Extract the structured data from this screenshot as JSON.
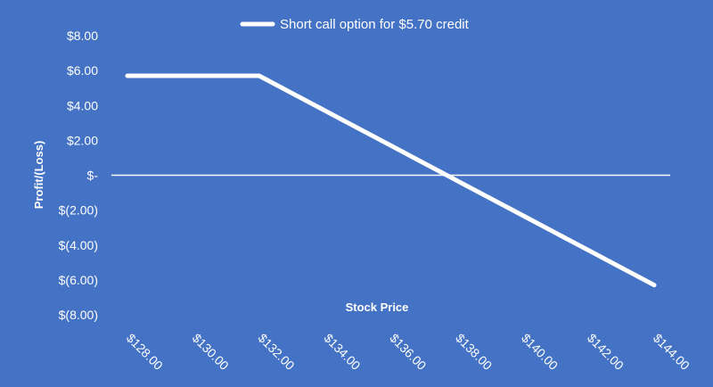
{
  "chart_data": {
    "type": "line",
    "title": "",
    "xlabel": "Stock Price",
    "ylabel": "Profit/(Loss)",
    "legend": "top-center",
    "ylim": [
      -8,
      8
    ],
    "x_tick_labels": [
      "$128.00",
      "$130.00",
      "$132.00",
      "$134.00",
      "$136.00",
      "$138.00",
      "$140.00",
      "$142.00",
      "$144.00"
    ],
    "y_tick_labels": [
      "$8.00",
      "$6.00",
      "$4.00",
      "$2.00",
      "$-",
      "$(2.00)",
      "$(4.00)",
      "$(6.00)",
      "$(8.00)"
    ],
    "series": [
      {
        "name": "Short call option for $5.70 credit",
        "color": "#FFFFFF",
        "x": [
          128,
          129,
          130,
          131,
          132,
          133,
          134,
          135,
          136,
          137,
          138,
          139,
          140,
          141,
          142,
          143,
          144
        ],
        "values": [
          5.7,
          5.7,
          5.7,
          5.7,
          5.7,
          4.7,
          3.7,
          2.7,
          1.7,
          0.7,
          -0.3,
          -1.3,
          -2.3,
          -3.3,
          -4.3,
          -5.3,
          -6.3
        ]
      }
    ]
  },
  "colors": {
    "background": "#4472C4",
    "foreground": "#FFFFFF"
  }
}
